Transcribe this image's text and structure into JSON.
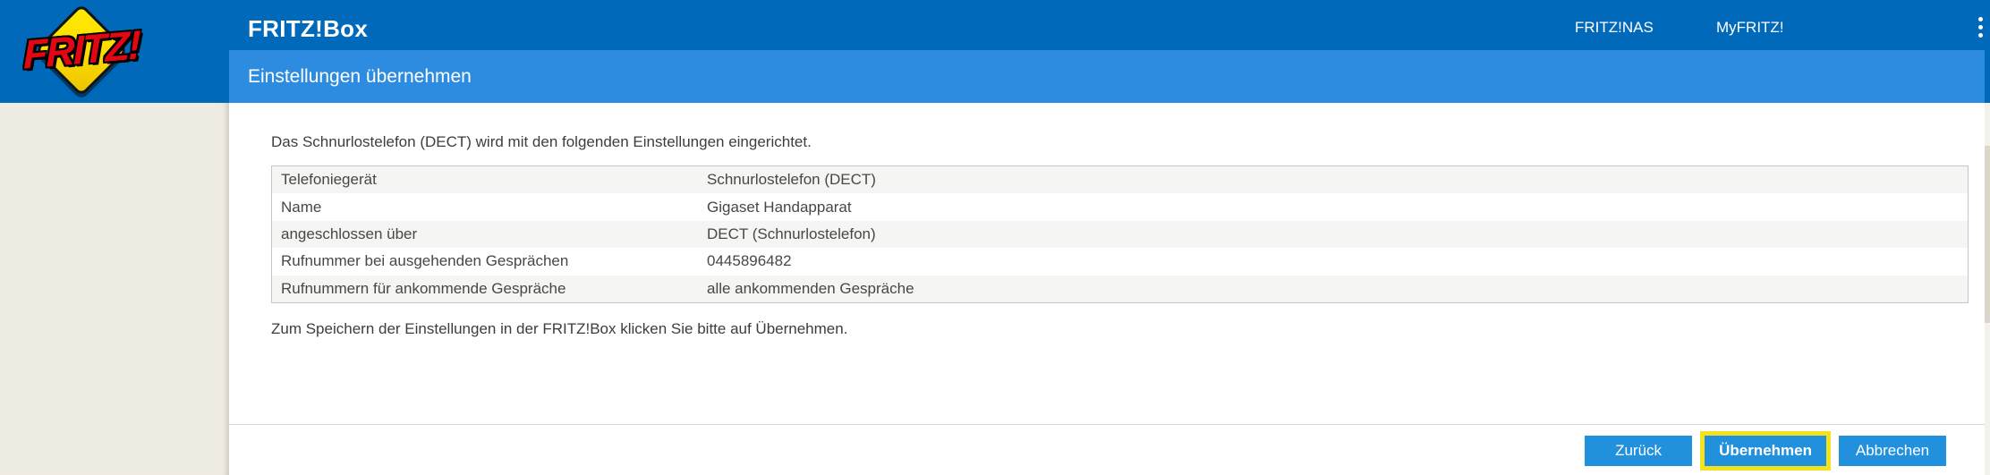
{
  "header": {
    "app_title": "FRITZ!Box",
    "logo_text": "FRITZ!",
    "nav": [
      {
        "label": "FRITZ!NAS"
      },
      {
        "label": "MyFRITZ!"
      }
    ]
  },
  "subheader": {
    "title": "Einstellungen übernehmen"
  },
  "main": {
    "intro_text": "Das Schnurlostelefon (DECT) wird mit den folgenden Einstellungen eingerichtet.",
    "settings_table": {
      "rows": [
        {
          "label": "Telefoniegerät",
          "value": "Schnurlostelefon (DECT)"
        },
        {
          "label": "Name",
          "value": "Gigaset Handapparat"
        },
        {
          "label": "angeschlossen über",
          "value": "DECT (Schnurlostelefon)"
        },
        {
          "label": "Rufnummer bei ausgehenden Gesprächen",
          "value": "0445896482"
        },
        {
          "label": "Rufnummern für ankommende Gespräche",
          "value": "alle ankommenden Gespräche"
        }
      ]
    },
    "hint_text": "Zum Speichern der Einstellungen in der FRITZ!Box klicken Sie bitte auf Übernehmen."
  },
  "footer": {
    "buttons": [
      {
        "label": "Zurück",
        "name": "back-button",
        "highlighted": false
      },
      {
        "label": "Übernehmen",
        "name": "apply-button",
        "highlighted": true
      },
      {
        "label": "Abbrechen",
        "name": "cancel-button",
        "highlighted": false
      }
    ]
  },
  "colors": {
    "header_blue": "#0069b9",
    "subheader_blue": "#2e8ce0",
    "button_blue": "#2291dd",
    "highlight_yellow": "#f5e21f",
    "sidebar_beige": "#efece3",
    "row_stripe_gray": "#f5f5f3"
  }
}
